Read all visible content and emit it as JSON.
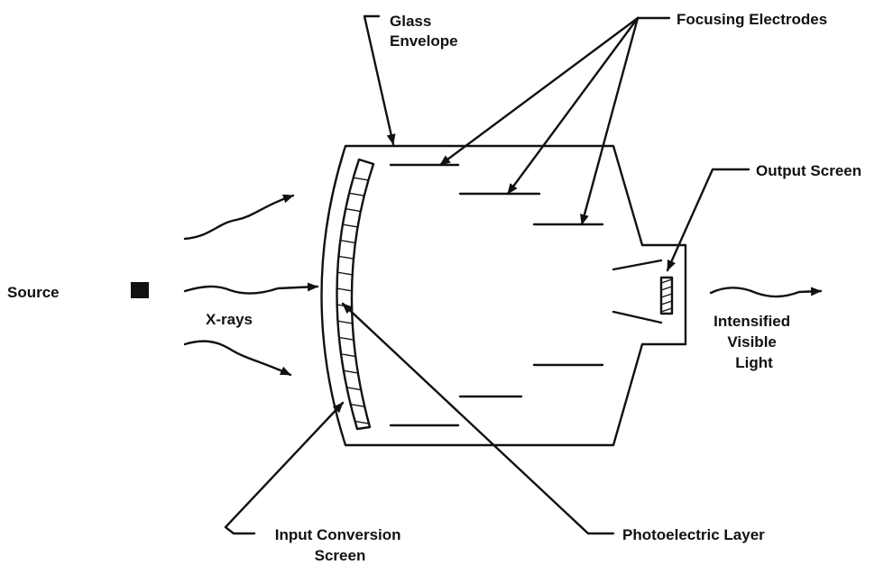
{
  "labels": {
    "glass_envelope": [
      "Glass",
      "Envelope"
    ],
    "focusing_electrodes": "Focusing Electrodes",
    "output_screen": "Output Screen",
    "source": "Source",
    "xrays": "X-rays",
    "intensified_visible_light": [
      "Intensified",
      "Visible",
      "Light"
    ],
    "input_conversion_screen": [
      "Input Conversion",
      "Screen"
    ],
    "photoelectric_layer": "Photoelectric Layer"
  },
  "colors": {
    "ink": "#111111",
    "background": "#ffffff"
  }
}
